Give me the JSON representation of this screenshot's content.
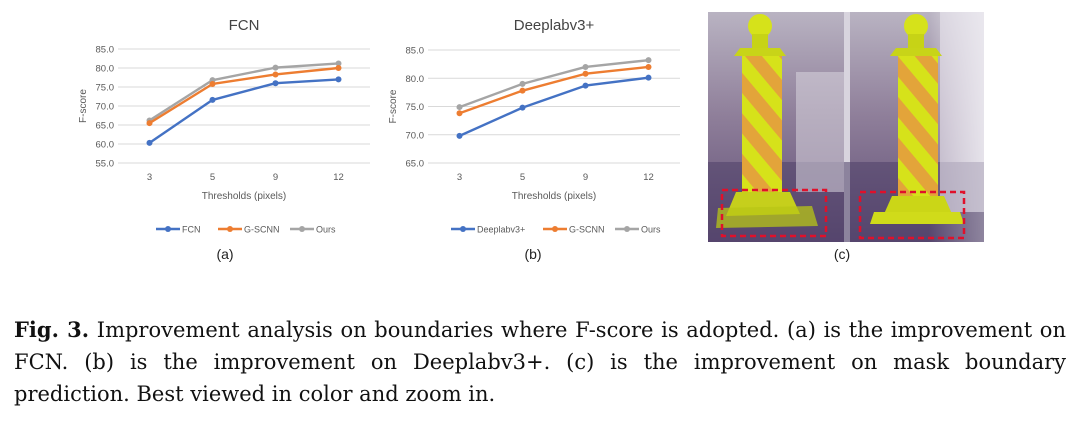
{
  "figure": {
    "caption_label": "Fig. 3.",
    "caption_text": "Improvement analysis on boundaries where F-score is adopted. (a) is the improvement on FCN. (b) is the improvement on Deeplabv3+. (c) is the improvement on mask boundary prediction. Best viewed in color and zoom in.",
    "panel_labels": [
      "(a)",
      "(b)",
      "(c)"
    ]
  },
  "colors": {
    "baseline": "#4472C4",
    "gscnn": "#ED7D31",
    "ours": "#A5A5A5",
    "gridline": "#D9D9D9",
    "axis_text": "#595959",
    "highlight_box": "#E0102B",
    "cone_yellow": "#D6E21A",
    "cone_stripe": "#E8A030"
  },
  "chart_data": [
    {
      "type": "line",
      "title": "FCN",
      "xlabel": "Thresholds (pixels)",
      "ylabel": "F-score",
      "categories": [
        "3",
        "5",
        "9",
        "12"
      ],
      "yticks": [
        "55.0",
        "60.0",
        "65.0",
        "70.0",
        "75.0",
        "80.0",
        "85.0"
      ],
      "ylim": [
        55,
        85
      ],
      "grid": true,
      "legend_position": "bottom",
      "series": [
        {
          "name": "FCN",
          "values": [
            60.3,
            71.6,
            76.0,
            77.0
          ]
        },
        {
          "name": "G-SCNN",
          "values": [
            65.5,
            75.8,
            78.3,
            80.0
          ]
        },
        {
          "name": "Ours",
          "values": [
            66.2,
            76.8,
            80.1,
            81.2
          ]
        }
      ]
    },
    {
      "type": "line",
      "title": "Deeplabv3+",
      "xlabel": "Thresholds (pixels)",
      "ylabel": "F-score",
      "categories": [
        "3",
        "5",
        "9",
        "12"
      ],
      "yticks": [
        "65.0",
        "70.0",
        "75.0",
        "80.0",
        "85.0"
      ],
      "ylim": [
        65,
        85
      ],
      "grid": true,
      "legend_position": "bottom",
      "series": [
        {
          "name": "Deeplabv3+",
          "values": [
            69.8,
            74.8,
            78.7,
            80.1
          ]
        },
        {
          "name": "G-SCNN",
          "values": [
            73.8,
            77.8,
            80.8,
            82.0
          ]
        },
        {
          "name": "Ours",
          "values": [
            74.9,
            79.0,
            82.0,
            83.2
          ]
        }
      ]
    }
  ]
}
